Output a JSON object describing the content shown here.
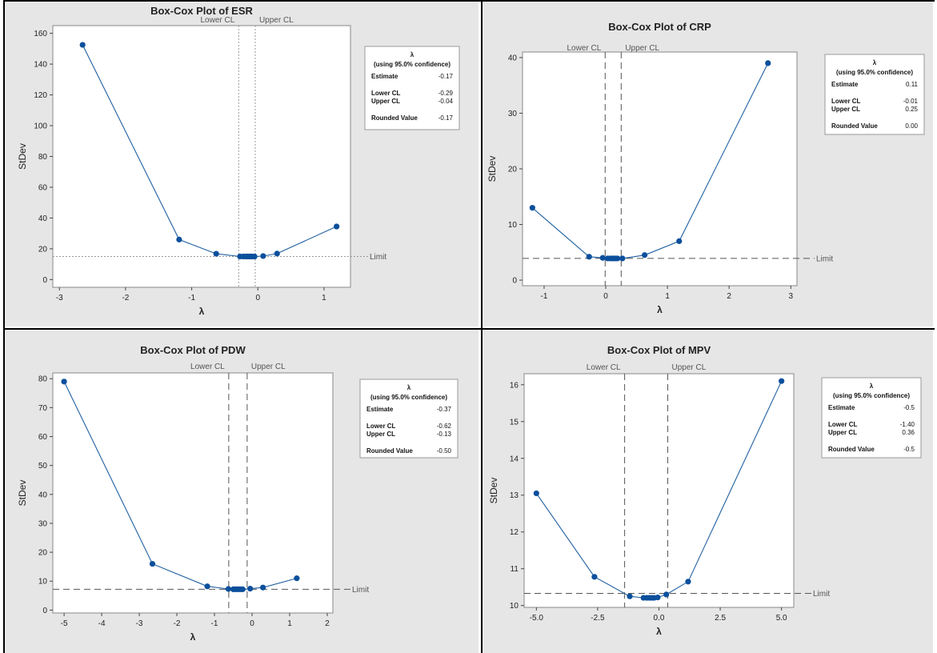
{
  "colors": {
    "panel_bg": "#e6e6e6",
    "plot_bg": "#ffffff",
    "series": "#1f5fa0",
    "marker": "#0b4f9c",
    "ref_line": "#555555",
    "grid_border": "#000000"
  },
  "legend_labels": {
    "symbol": "λ",
    "confidence": "(using 95.0% confidence)",
    "estimate": "Estimate",
    "lower": "Lower CL",
    "upper": "Upper CL",
    "rounded": "Rounded Value"
  },
  "chart_data": [
    {
      "type": "line",
      "title": "Box-Cox Plot of ESR",
      "xlabel": "λ",
      "ylabel": "StDev",
      "xlim": [
        -3.1,
        1.4
      ],
      "ylim": [
        -5,
        165
      ],
      "xticks": [
        -3,
        -2,
        -1,
        0,
        1
      ],
      "yticks": [
        0,
        20,
        40,
        60,
        80,
        100,
        120,
        140,
        160
      ],
      "x": [
        -2.65,
        -1.19,
        -0.63,
        -0.27,
        -0.22,
        -0.18,
        -0.15,
        -0.12,
        -0.09,
        -0.05,
        0.08,
        0.29,
        1.19
      ],
      "y": [
        152.5,
        26,
        16.8,
        15.0,
        15.0,
        15.0,
        15.0,
        15.0,
        15.0,
        15.0,
        15.3,
        16.9,
        34.5
      ],
      "limit": 15,
      "limit_label": "Limit",
      "lower_cl": -0.29,
      "upper_cl": -0.04,
      "lower_cl_label": "Lower CL",
      "upper_cl_label": "Upper CL",
      "cl_line_style": "dotted",
      "legend": {
        "estimate": "-0.17",
        "lower": "-0.29",
        "upper": "-0.04",
        "rounded": "-0.17"
      },
      "legend_position": "top-right"
    },
    {
      "type": "line",
      "title": "Box-Cox Plot of CRP",
      "xlabel": "λ",
      "ylabel": "StDev",
      "xlim": [
        -1.35,
        3.1
      ],
      "ylim": [
        -1,
        41
      ],
      "xticks": [
        -1,
        0,
        1,
        2,
        3
      ],
      "yticks": [
        0,
        10,
        20,
        30,
        40
      ],
      "x": [
        -1.19,
        -0.27,
        -0.05,
        0.03,
        0.07,
        0.1,
        0.13,
        0.16,
        0.19,
        0.27,
        0.63,
        1.19,
        2.63
      ],
      "y": [
        13.0,
        4.2,
        4.0,
        3.9,
        3.9,
        3.9,
        3.9,
        3.9,
        3.9,
        3.9,
        4.5,
        7.0,
        39.0
      ],
      "limit": 3.9,
      "limit_label": "Limit",
      "lower_cl": -0.01,
      "upper_cl": 0.25,
      "lower_cl_label": "Lower CL",
      "upper_cl_label": "Upper CL",
      "cl_line_style": "dashed",
      "legend": {
        "estimate": "0.11",
        "lower": "-0.01",
        "upper": "0.25",
        "rounded": "0.00"
      },
      "legend_position": "top-right"
    },
    {
      "type": "line",
      "title": "Box-Cox Plot of PDW",
      "xlabel": "λ",
      "ylabel": "StDev",
      "xlim": [
        -5.3,
        2.15
      ],
      "ylim": [
        -1,
        82
      ],
      "xticks": [
        -5,
        -4,
        -3,
        -2,
        -1,
        0,
        1,
        2
      ],
      "yticks": [
        0,
        10,
        20,
        30,
        40,
        50,
        60,
        70,
        80
      ],
      "x": [
        -5.0,
        -2.65,
        -1.19,
        -0.63,
        -0.5,
        -0.45,
        -0.4,
        -0.35,
        -0.3,
        -0.25,
        -0.05,
        0.29,
        1.19
      ],
      "y": [
        79.0,
        16.0,
        8.2,
        7.3,
        7.2,
        7.2,
        7.2,
        7.2,
        7.2,
        7.2,
        7.4,
        7.8,
        11.0
      ],
      "limit": 7.2,
      "limit_label": "Limit",
      "lower_cl": -0.62,
      "upper_cl": -0.13,
      "lower_cl_label": "Lower CL",
      "upper_cl_label": "Upper CL",
      "cl_line_style": "dashed",
      "legend": {
        "estimate": "-0.37",
        "lower": "-0.62",
        "upper": "-0.13",
        "rounded": "-0.50"
      },
      "legend_position": "top-right"
    },
    {
      "type": "line",
      "title": "Box-Cox Plot of MPV",
      "xlabel": "λ",
      "ylabel": "StDev",
      "xlim": [
        -5.5,
        5.5
      ],
      "ylim": [
        9.95,
        16.3
      ],
      "xticks": [
        -5.0,
        -2.5,
        0.0,
        2.5,
        5.0
      ],
      "xtick_labels": [
        "-5.0",
        "-2.5",
        "0.0",
        "2.5",
        "5.0"
      ],
      "yticks": [
        10,
        11,
        12,
        13,
        14,
        15,
        16
      ],
      "x": [
        -5.0,
        -2.63,
        -1.19,
        -0.63,
        -0.5,
        -0.4,
        -0.3,
        -0.2,
        -0.05,
        0.3,
        1.19,
        5.0
      ],
      "y": [
        13.05,
        10.78,
        10.25,
        10.21,
        10.21,
        10.21,
        10.21,
        10.21,
        10.22,
        10.3,
        10.65,
        16.1
      ],
      "limit": 10.33,
      "limit_label": "Limit",
      "lower_cl": -1.4,
      "upper_cl": 0.36,
      "lower_cl_label": "Lower CL",
      "upper_cl_label": "Upper CL",
      "cl_line_style": "dashed",
      "legend": {
        "estimate": "-0.5",
        "lower": "-1.40",
        "upper": "0.36",
        "rounded": "-0.5"
      },
      "legend_position": "top-right"
    }
  ]
}
